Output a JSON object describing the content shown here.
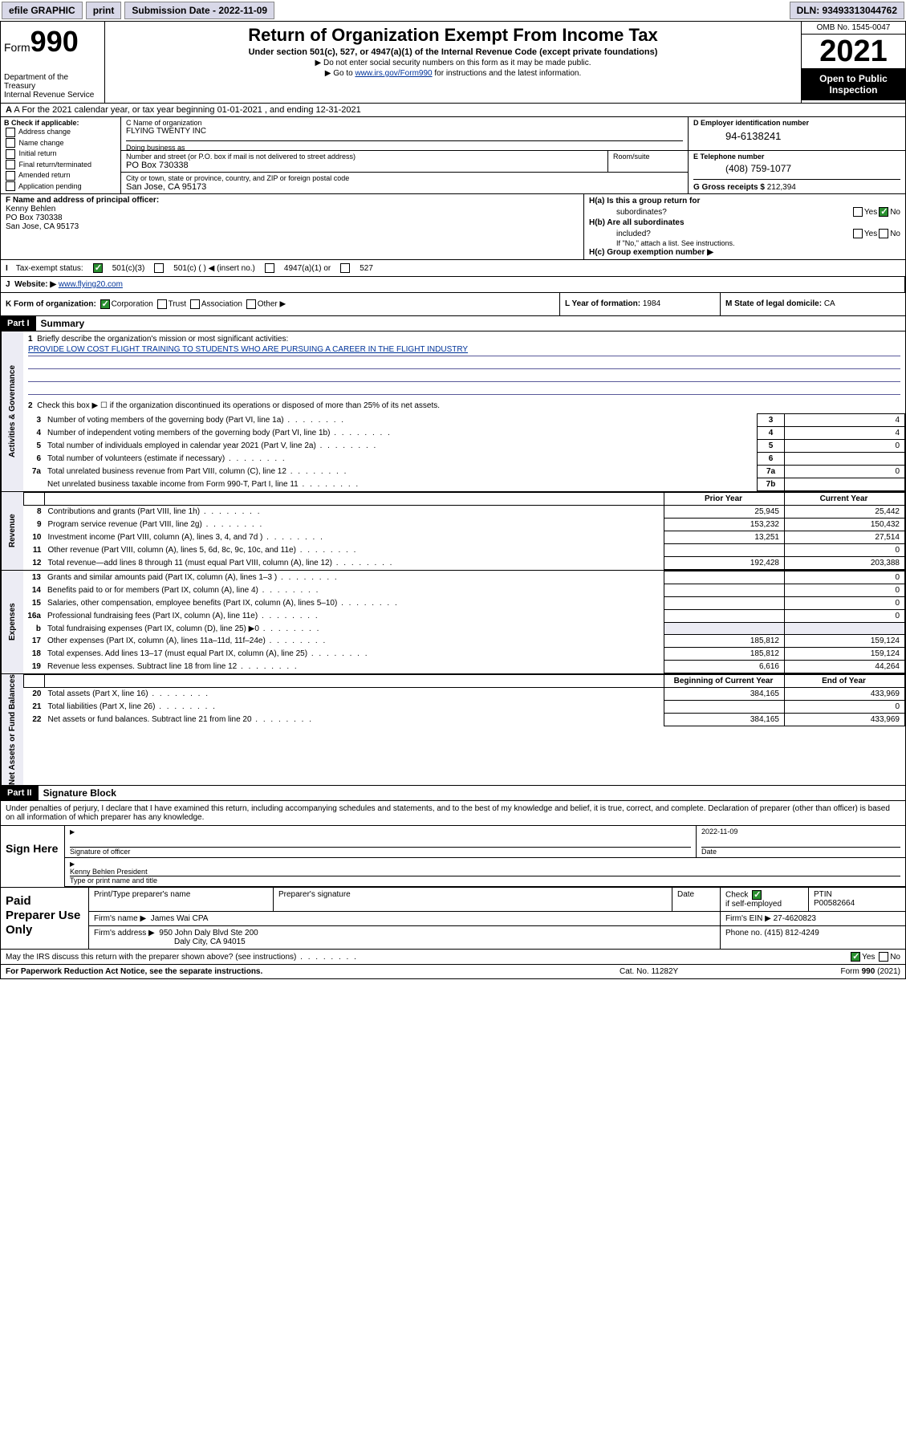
{
  "topbar": {
    "efile": "efile GRAPHIC",
    "print": "print",
    "sub_label": "Submission Date - 2022-11-09",
    "dln_label": "DLN: 93493313044762"
  },
  "header": {
    "form_label": "Form",
    "form_num": "990",
    "dept": "Department of the Treasury",
    "irs": "Internal Revenue Service",
    "title": "Return of Organization Exempt From Income Tax",
    "sub1": "Under section 501(c), 527, or 4947(a)(1) of the Internal Revenue Code (except private foundations)",
    "sub2": "▶ Do not enter social security numbers on this form as it may be made public.",
    "sub3_pre": "▶ Go to ",
    "sub3_link": "www.irs.gov/Form990",
    "sub3_post": " for instructions and the latest information.",
    "omb": "OMB No. 1545-0047",
    "year": "2021",
    "inspection1": "Open to Public",
    "inspection2": "Inspection"
  },
  "row_a": "A For the 2021 calendar year, or tax year beginning 01-01-2021   , and ending 12-31-2021",
  "col_b": {
    "hdr": "B Check if applicable:",
    "items": [
      "Address change",
      "Name change",
      "Initial return",
      "Final return/terminated",
      "Amended return",
      "Application pending"
    ]
  },
  "c": {
    "name_lbl": "C Name of organization",
    "name": "FLYING TWENTY INC",
    "dba_lbl": "Doing business as",
    "street_lbl": "Number and street (or P.O. box if mail is not delivered to street address)",
    "street": "PO Box 730338",
    "room_lbl": "Room/suite",
    "city_lbl": "City or town, state or province, country, and ZIP or foreign postal code",
    "city": "San Jose, CA  95173"
  },
  "d": {
    "ein_lbl": "D Employer identification number",
    "ein": "94-6138241",
    "phone_lbl": "E Telephone number",
    "phone": "(408) 759-1077",
    "gross_lbl": "G Gross receipts $",
    "gross": "212,394"
  },
  "f": {
    "lbl": "F Name and address of principal officer:",
    "name": "Kenny Behlen",
    "addr1": "PO Box 730338",
    "addr2": "San Jose, CA  95173"
  },
  "h": {
    "a_lbl": "H(a)  Is this a group return for",
    "a_lbl2": "subordinates?",
    "b_lbl": "H(b)  Are all subordinates",
    "b_lbl2": "included?",
    "b_note": "If \"No,\" attach a list. See instructions.",
    "c_lbl": "H(c)  Group exemption number ▶",
    "yes": "Yes",
    "no": "No"
  },
  "i": {
    "lbl": "Tax-exempt status:",
    "opts": [
      "501(c)(3)",
      "501(c) (  ) ◀ (insert no.)",
      "4947(a)(1) or",
      "527"
    ]
  },
  "j": {
    "lbl": "Website: ▶",
    "val": "www.flying20.com"
  },
  "k": {
    "lbl": "K Form of organization:",
    "opts": [
      "Corporation",
      "Trust",
      "Association",
      "Other ▶"
    ],
    "l_lbl": "L Year of formation:",
    "l_val": "1984",
    "m_lbl": "M State of legal domicile:",
    "m_val": "CA"
  },
  "part1": {
    "hdr": "Part I",
    "title": "Summary",
    "tab1": "Activities & Governance",
    "tab2": "Revenue",
    "tab3": "Expenses",
    "tab4": "Net Assets or Fund Balances",
    "line1_lbl": "Briefly describe the organization's mission or most significant activities:",
    "line1_txt": "PROVIDE LOW COST FLIGHT TRAINING TO STUDENTS WHO ARE PURSUING A CAREER IN THE FLIGHT INDUSTRY",
    "line2": "Check this box ▶ ☐  if the organization discontinued its operations or disposed of more than 25% of its net assets.",
    "rows_gov": [
      {
        "n": "3",
        "d": "Number of voting members of the governing body (Part VI, line 1a)",
        "box": "3",
        "v": "4"
      },
      {
        "n": "4",
        "d": "Number of independent voting members of the governing body (Part VI, line 1b)",
        "box": "4",
        "v": "4"
      },
      {
        "n": "5",
        "d": "Total number of individuals employed in calendar year 2021 (Part V, line 2a)",
        "box": "5",
        "v": "0"
      },
      {
        "n": "6",
        "d": "Total number of volunteers (estimate if necessary)",
        "box": "6",
        "v": ""
      },
      {
        "n": "7a",
        "d": "Total unrelated business revenue from Part VIII, column (C), line 12",
        "box": "7a",
        "v": "0"
      },
      {
        "n": "",
        "d": "Net unrelated business taxable income from Form 990-T, Part I, line 11",
        "box": "7b",
        "v": ""
      }
    ],
    "col_prior": "Prior Year",
    "col_curr": "Current Year",
    "rows_rev": [
      {
        "n": "8",
        "d": "Contributions and grants (Part VIII, line 1h)",
        "p": "25,945",
        "c": "25,442"
      },
      {
        "n": "9",
        "d": "Program service revenue (Part VIII, line 2g)",
        "p": "153,232",
        "c": "150,432"
      },
      {
        "n": "10",
        "d": "Investment income (Part VIII, column (A), lines 3, 4, and 7d )",
        "p": "13,251",
        "c": "27,514"
      },
      {
        "n": "11",
        "d": "Other revenue (Part VIII, column (A), lines 5, 6d, 8c, 9c, 10c, and 11e)",
        "p": "",
        "c": "0"
      },
      {
        "n": "12",
        "d": "Total revenue—add lines 8 through 11 (must equal Part VIII, column (A), line 12)",
        "p": "192,428",
        "c": "203,388"
      }
    ],
    "rows_exp": [
      {
        "n": "13",
        "d": "Grants and similar amounts paid (Part IX, column (A), lines 1–3 )",
        "p": "",
        "c": "0"
      },
      {
        "n": "14",
        "d": "Benefits paid to or for members (Part IX, column (A), line 4)",
        "p": "",
        "c": "0"
      },
      {
        "n": "15",
        "d": "Salaries, other compensation, employee benefits (Part IX, column (A), lines 5–10)",
        "p": "",
        "c": "0"
      },
      {
        "n": "16a",
        "d": "Professional fundraising fees (Part IX, column (A), line 11e)",
        "p": "",
        "c": "0"
      },
      {
        "n": "b",
        "d": "Total fundraising expenses (Part IX, column (D), line 25) ▶0",
        "p": "blank",
        "c": "blank"
      },
      {
        "n": "17",
        "d": "Other expenses (Part IX, column (A), lines 11a–11d, 11f–24e)",
        "p": "185,812",
        "c": "159,124"
      },
      {
        "n": "18",
        "d": "Total expenses. Add lines 13–17 (must equal Part IX, column (A), line 25)",
        "p": "185,812",
        "c": "159,124"
      },
      {
        "n": "19",
        "d": "Revenue less expenses. Subtract line 18 from line 12",
        "p": "6,616",
        "c": "44,264"
      }
    ],
    "col_begin": "Beginning of Current Year",
    "col_end": "End of Year",
    "rows_net": [
      {
        "n": "20",
        "d": "Total assets (Part X, line 16)",
        "p": "384,165",
        "c": "433,969"
      },
      {
        "n": "21",
        "d": "Total liabilities (Part X, line 26)",
        "p": "",
        "c": "0"
      },
      {
        "n": "22",
        "d": "Net assets or fund balances. Subtract line 21 from line 20",
        "p": "384,165",
        "c": "433,969"
      }
    ]
  },
  "part2": {
    "hdr": "Part II",
    "title": "Signature Block",
    "note": "Under penalties of perjury, I declare that I have examined this return, including accompanying schedules and statements, and to the best of my knowledge and belief, it is true, correct, and complete. Declaration of preparer (other than officer) is based on all information of which preparer has any knowledge."
  },
  "sign": {
    "lbl": "Sign Here",
    "sig_lbl": "Signature of officer",
    "date_lbl": "Date",
    "date": "2022-11-09",
    "name": "Kenny Behlen President",
    "name_lbl": "Type or print name and title"
  },
  "prep": {
    "lbl": "Paid Preparer Use Only",
    "c1": "Print/Type preparer's name",
    "c2": "Preparer's signature",
    "c3": "Date",
    "c4_lbl": "Check",
    "c4_txt": "if self-employed",
    "c5_lbl": "PTIN",
    "c5_val": "P00582664",
    "firm_lbl": "Firm's name    ▶",
    "firm": "James Wai CPA",
    "ein_lbl": "Firm's EIN ▶",
    "ein": "27-4620823",
    "addr_lbl": "Firm's address ▶",
    "addr1": "950 John Daly Blvd Ste 200",
    "addr2": "Daly City, CA  94015",
    "phone_lbl": "Phone no.",
    "phone": "(415) 812-4249"
  },
  "discuss": {
    "q": "May the IRS discuss this return with the preparer shown above? (see instructions)",
    "yes": "Yes",
    "no": "No"
  },
  "footer": {
    "f1": "For Paperwork Reduction Act Notice, see the separate instructions.",
    "f2": "Cat. No. 11282Y",
    "f3": "Form 990 (2021)"
  }
}
